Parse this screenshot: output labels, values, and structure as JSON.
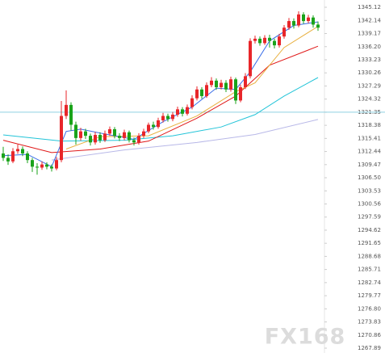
{
  "chart_data": {
    "type": "candlestick",
    "watermark": "FX168",
    "ylim": [
      1266.79,
      1346.77
    ],
    "yticks": [
      1345.12,
      1342.14,
      1339.17,
      {
        "value": 1336.2,
        "label": "1336.20"
      },
      1333.23,
      1330.26,
      1327.29,
      1324.32,
      1321.35,
      1318.38,
      1315.41,
      1312.44,
      1309.47,
      {
        "value": 1306.5,
        "label": "1306.50"
      },
      1303.53,
      1300.56,
      1297.59,
      1294.62,
      1291.65,
      1288.68,
      1285.71,
      1282.74,
      1279.77,
      {
        "value": 1276.8,
        "label": "1276.80"
      },
      1273.83,
      1270.86,
      1267.89
    ],
    "price_line": 1321.35,
    "up_color": "#e8262a",
    "down_color": "#1aa31a",
    "open": [
      1312.0,
      1311.0,
      1310.2,
      1312.5,
      1313.0,
      1312.0,
      1310.5,
      1309.0,
      1308.8,
      1309.5,
      1309.0,
      1308.6,
      1310.5,
      1320.5,
      1323.0,
      1318.5,
      1315.5,
      1317.0,
      1316.0,
      1314.5,
      1316.2,
      1315.0,
      1316.5,
      1317.5,
      1316.0,
      1315.5,
      1316.8,
      1315.0,
      1314.5,
      1316.0,
      1317.0,
      1318.5,
      1318.0,
      1319.5,
      1320.5,
      1319.8,
      1320.8,
      1322.0,
      1321.0,
      1322.5,
      1324.5,
      1326.5,
      1325.0,
      1327.5,
      1328.5,
      1327.0,
      1328.0,
      1326.5,
      1328.8,
      1324.0,
      1327.0,
      1329.5,
      1337.5,
      1338.0,
      1337.0,
      1338.2,
      1337.5,
      1336.5,
      1338.5,
      1340.5,
      1342.0,
      1341.0,
      1343.5,
      1342.0,
      1342.8,
      1341.2
    ],
    "high": [
      1313.5,
      1311.8,
      1313.2,
      1314.0,
      1313.6,
      1312.5,
      1311.0,
      1309.8,
      1310.2,
      1310.0,
      1309.5,
      1311.2,
      1323.9,
      1326.3,
      1323.6,
      1319.2,
      1317.8,
      1317.6,
      1316.5,
      1316.9,
      1316.8,
      1317.2,
      1318.1,
      1318.0,
      1316.6,
      1317.4,
      1317.2,
      1315.6,
      1316.6,
      1317.6,
      1319.0,
      1319.2,
      1320.1,
      1321.2,
      1321.0,
      1321.4,
      1322.6,
      1322.5,
      1323.1,
      1325.2,
      1327.2,
      1327.0,
      1328.1,
      1329.3,
      1329.0,
      1328.7,
      1328.6,
      1329.4,
      1329.2,
      1327.6,
      1330.2,
      1338.1,
      1338.7,
      1338.5,
      1338.8,
      1338.9,
      1338.0,
      1339.1,
      1341.1,
      1342.7,
      1342.6,
      1344.2,
      1344.0,
      1343.4,
      1343.3,
      1341.9
    ],
    "low": [
      1310.3,
      1309.4,
      1309.8,
      1311.9,
      1311.4,
      1309.8,
      1307.8,
      1307.2,
      1308.3,
      1308.4,
      1307.9,
      1308.2,
      1310.0,
      1319.8,
      1317.2,
      1314.0,
      1314.9,
      1315.3,
      1313.8,
      1314.0,
      1314.4,
      1314.6,
      1316.0,
      1315.4,
      1314.8,
      1315.0,
      1314.5,
      1313.8,
      1314.0,
      1315.5,
      1316.6,
      1317.4,
      1317.6,
      1319.0,
      1319.2,
      1319.3,
      1320.3,
      1320.4,
      1320.6,
      1322.0,
      1324.0,
      1324.4,
      1324.6,
      1327.0,
      1326.4,
      1326.5,
      1325.9,
      1326.0,
      1323.2,
      1323.6,
      1326.6,
      1329.0,
      1336.9,
      1336.4,
      1336.6,
      1336.0,
      1335.8,
      1336.0,
      1338.0,
      1340.0,
      1340.3,
      1340.6,
      1341.4,
      1341.5,
      1340.5,
      1339.8
    ],
    "close": [
      1311.0,
      1310.2,
      1312.5,
      1313.0,
      1312.0,
      1310.5,
      1309.0,
      1308.8,
      1309.5,
      1309.0,
      1308.6,
      1310.5,
      1320.5,
      1323.0,
      1318.5,
      1315.5,
      1317.0,
      1316.0,
      1314.5,
      1316.2,
      1315.0,
      1316.5,
      1317.5,
      1316.0,
      1315.5,
      1316.8,
      1315.0,
      1314.5,
      1316.0,
      1317.0,
      1318.5,
      1318.0,
      1319.5,
      1320.5,
      1319.8,
      1320.8,
      1322.0,
      1321.0,
      1322.5,
      1324.5,
      1326.5,
      1325.0,
      1327.5,
      1328.5,
      1327.0,
      1328.0,
      1326.5,
      1328.8,
      1324.0,
      1327.0,
      1329.5,
      1337.5,
      1338.0,
      1337.0,
      1338.2,
      1337.5,
      1336.5,
      1338.5,
      1340.5,
      1342.0,
      1341.0,
      1343.5,
      1342.0,
      1342.8,
      1341.2,
      1340.5
    ],
    "series": [
      {
        "color": "#b8b8e8",
        "x": [
          10,
          25,
          40,
          52,
          65
        ],
        "values": [
          1310.5,
          1312.8,
          1314.5,
          1316.3,
          1319.7
        ]
      },
      {
        "color": "#22c4d8",
        "x": [
          0,
          12,
          25,
          35,
          45,
          52,
          58,
          65
        ],
        "values": [
          1316.2,
          1314.8,
          1315.0,
          1316.0,
          1318.0,
          1320.8,
          1325.0,
          1329.2
        ]
      },
      {
        "color": "#e01818",
        "x": [
          0,
          10,
          20,
          30,
          40,
          48,
          55,
          65
        ],
        "values": [
          1315.0,
          1312.2,
          1313.0,
          1314.8,
          1320.0,
          1325.0,
          1332.0,
          1336.3
        ]
      },
      {
        "color": "#e8b040",
        "x": [
          13,
          20,
          30,
          40,
          48,
          52,
          58,
          65
        ],
        "values": [
          1313.0,
          1315.8,
          1316.0,
          1320.5,
          1326.0,
          1328.0,
          1336.0,
          1340.8
        ]
      },
      {
        "color": "#3a6ee8",
        "x": [
          0,
          5,
          10,
          13,
          16,
          22,
          27,
          33,
          39,
          44,
          48,
          51,
          55,
          60,
          65
        ],
        "values": [
          1311.5,
          1311.8,
          1309.0,
          1317.0,
          1317.5,
          1316.2,
          1315.2,
          1319.2,
          1322.5,
          1326.8,
          1326.5,
          1330.5,
          1337.5,
          1341.0,
          1341.8
        ]
      }
    ]
  }
}
